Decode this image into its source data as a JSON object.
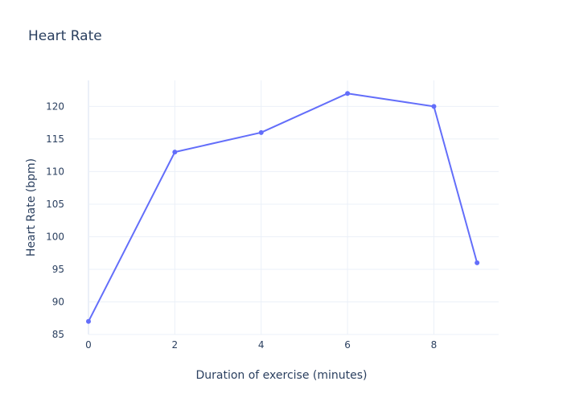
{
  "chart_data": {
    "type": "line",
    "title": "Heart Rate",
    "xlabel": "Duration of exercise (minutes)",
    "ylabel": "Heart Rate (bpm)",
    "x": [
      0,
      2,
      4,
      6,
      8,
      9
    ],
    "series": [
      {
        "values": [
          87,
          113,
          116,
          122,
          120,
          96
        ],
        "color": "#636efa"
      }
    ],
    "xlim": [
      0,
      9.5
    ],
    "ylim": [
      85,
      124
    ],
    "xticks": [
      0,
      2,
      4,
      6,
      8
    ],
    "yticks": [
      85,
      90,
      95,
      100,
      105,
      110,
      115,
      120
    ],
    "grid": true,
    "legend": "none"
  }
}
